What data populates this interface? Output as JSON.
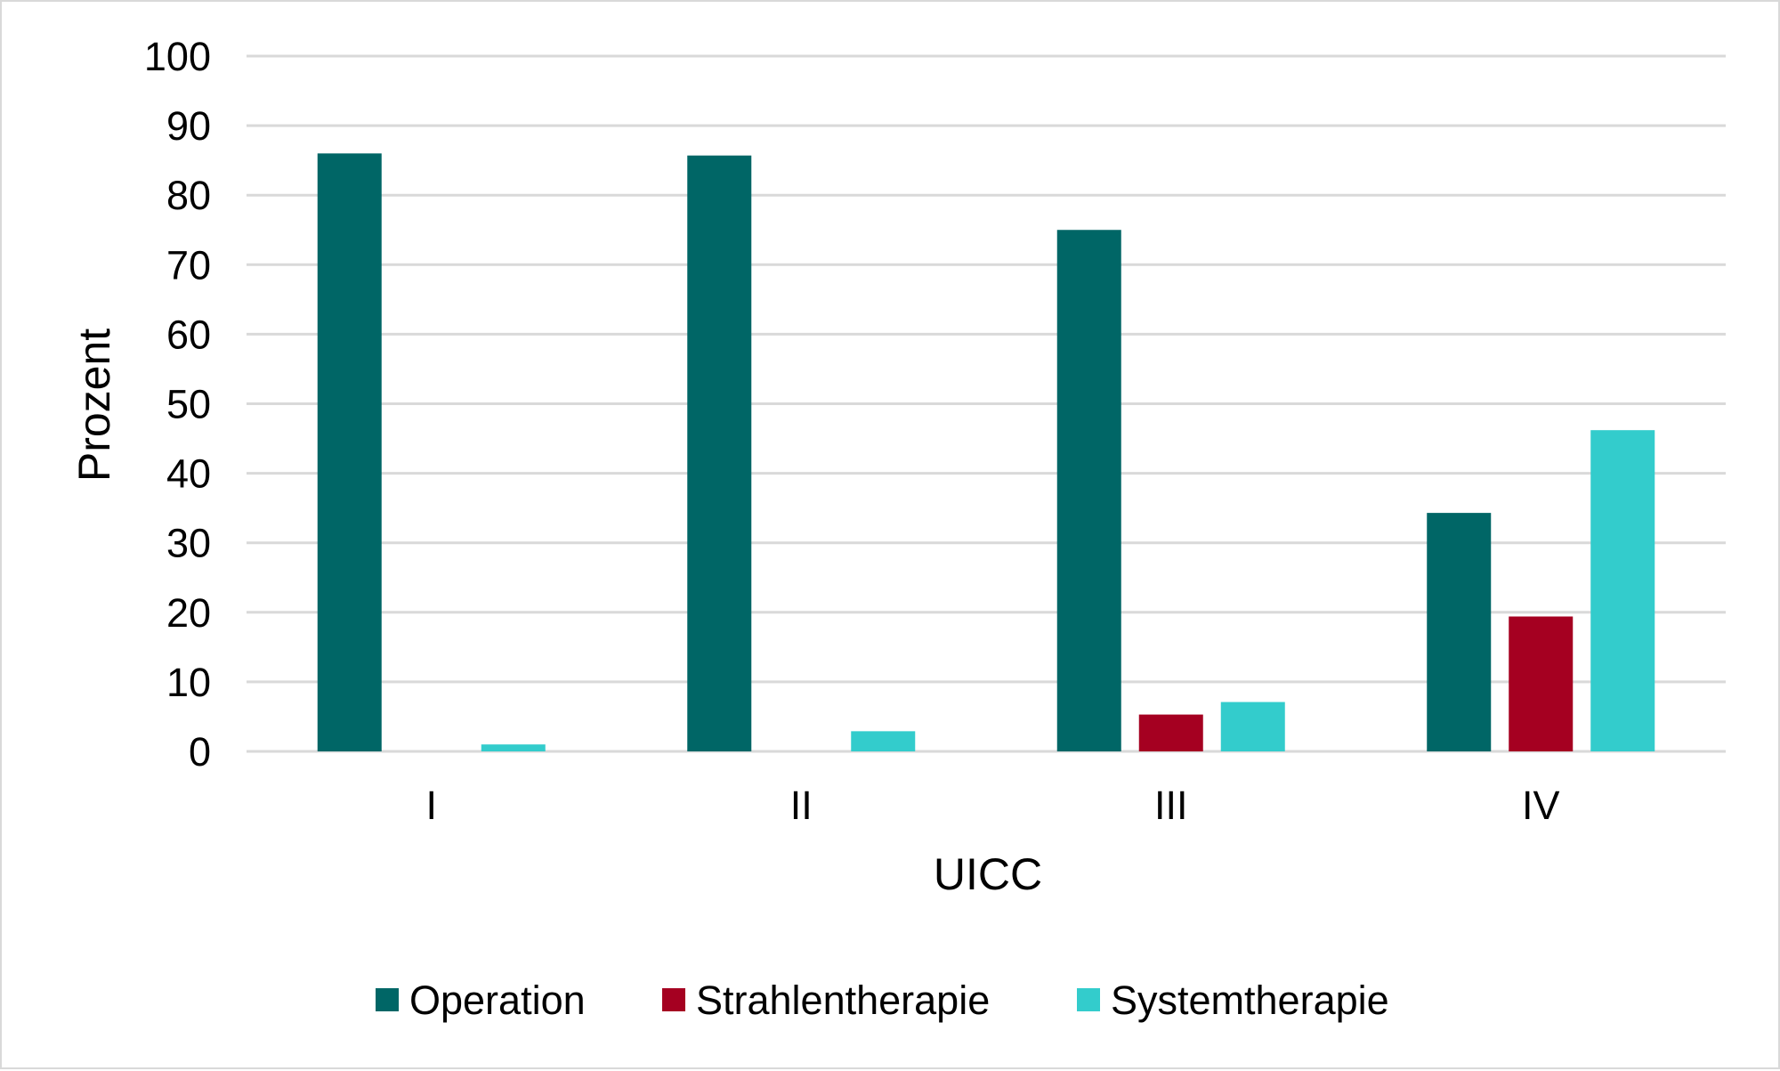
{
  "chart_data": {
    "type": "bar",
    "title": "",
    "xlabel": "UICC",
    "ylabel": "Prozent",
    "categories": [
      "I",
      "II",
      "III",
      "IV"
    ],
    "series": [
      {
        "name": "Operation",
        "color": "#006666",
        "values": [
          86.0,
          85.7,
          75.0,
          34.3
        ]
      },
      {
        "name": "Strahlentherapie",
        "color": "#a50021",
        "values": [
          0,
          0,
          5.3,
          19.4
        ]
      },
      {
        "name": "Systemtherapie",
        "color": "#33cccc",
        "values": [
          1.0,
          2.9,
          7.1,
          46.2
        ]
      }
    ],
    "ylim": [
      0,
      100
    ],
    "yticks": [
      0,
      10,
      20,
      30,
      40,
      50,
      60,
      70,
      80,
      90,
      100
    ],
    "grid": true,
    "legend_position": "bottom"
  }
}
